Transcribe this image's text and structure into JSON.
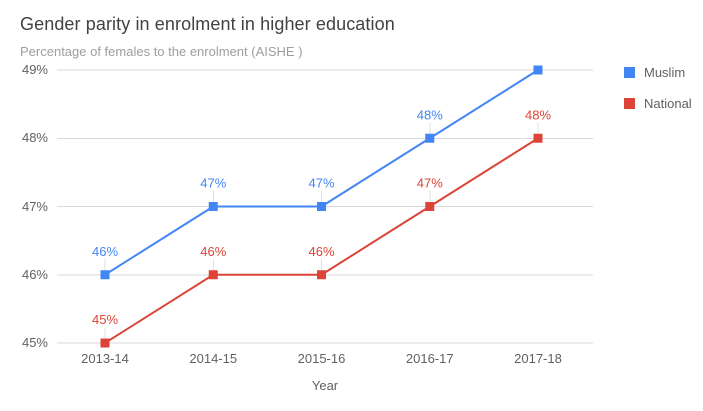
{
  "chart": {
    "title": "Gender parity in enrolment in higher education",
    "subtitle": "Percentage of females to the enrolment  (AISHE )",
    "xaxis_title": "Year"
  },
  "chart_data": {
    "type": "line",
    "title": "Gender parity in enrolment in higher education",
    "subtitle": "Percentage of females to the enrolment  (AISHE )",
    "xlabel": "Year",
    "ylabel": "",
    "categories": [
      "2013-14",
      "2014-15",
      "2015-16",
      "2016-17",
      "2017-18"
    ],
    "series": [
      {
        "name": "Muslim",
        "color": "#4285F4",
        "values": [
          46,
          47,
          47,
          48,
          49
        ],
        "labels": [
          "46%",
          "47%",
          "47%",
          "48%",
          null
        ]
      },
      {
        "name": "National",
        "color": "#DB4437",
        "values": [
          45,
          46,
          46,
          47,
          48
        ],
        "labels": [
          "45%",
          "46%",
          "46%",
          "47%",
          "48%"
        ]
      }
    ],
    "ylim": [
      45,
      49
    ],
    "yticks": [
      {
        "value": 49,
        "label": "49%"
      },
      {
        "value": 48,
        "label": "48%"
      },
      {
        "value": 47,
        "label": "47%"
      },
      {
        "value": 46,
        "label": "46%"
      },
      {
        "value": 45,
        "label": "45%"
      }
    ],
    "grid": "horizontal",
    "legend_position": "right",
    "marker": "square",
    "data_labels": true
  },
  "colors": {
    "muslim": "#4285F4",
    "national": "#DB4437",
    "gridline": "#d9d9d9",
    "label_stem": "#e0e0e0",
    "title": "#424242",
    "subtitle": "#9e9e9e",
    "axis_text": "#616161",
    "background": "#ffffff"
  }
}
